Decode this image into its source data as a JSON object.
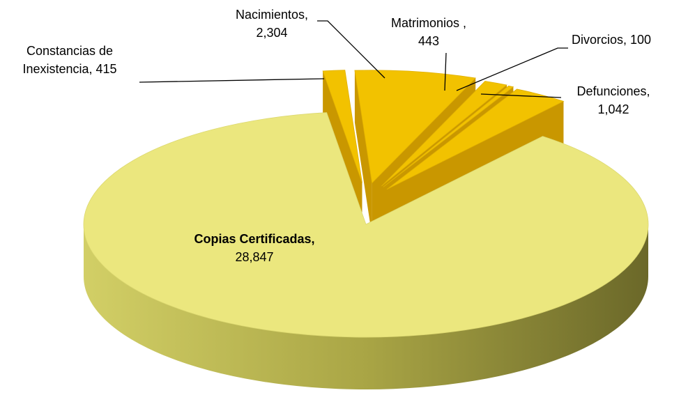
{
  "chart_data": {
    "type": "pie",
    "categories": [
      "Constancias de Inexistencia,",
      "Nacimientos,",
      "Matrimonios ,",
      "Divorcios,",
      "Defunciones,",
      "Copias Certificadas,"
    ],
    "values": [
      415,
      2304,
      443,
      100,
      1042,
      28847
    ],
    "value_labels": [
      "415",
      "2,304",
      "443",
      "100",
      "1,042",
      "28,847"
    ],
    "colors": [
      "#f2c200",
      "#f2c200",
      "#f2c200",
      "#f2c200",
      "#f2c200",
      "#ebe77e"
    ]
  }
}
